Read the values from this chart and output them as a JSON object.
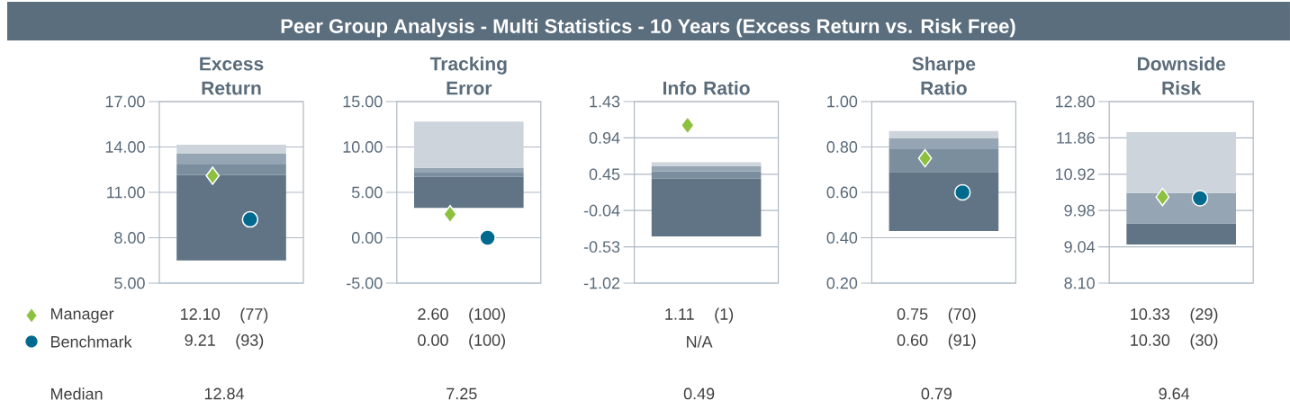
{
  "chart_data": [
    {
      "type": "other",
      "title": "Peer Group Analysis - Multi Statistics - 10 Years (Excess Return vs. Risk Free)",
      "annotations": [
        "Median"
      ]
    },
    {
      "type": "bar",
      "title": "Excess Return",
      "categories": [
        null
      ],
      "ylim": [
        5,
        17
      ],
      "yticks": [
        {
          "value": 5,
          "label": "5.00"
        },
        {
          "value": 8,
          "label": "8.00"
        },
        {
          "value": 11,
          "label": "11.00"
        },
        {
          "value": 14,
          "label": "14.00"
        },
        {
          "value": 17,
          "label": "17.00"
        }
      ],
      "grid": "y",
      "legend": "bottom left",
      "series": [
        {
          "color": "#607485",
          "base": [
            6.5
          ],
          "values": [
            5.65
          ]
        },
        {
          "color": "#7a8e9e",
          "base": [
            12.15
          ],
          "values": [
            0.69
          ]
        },
        {
          "color": "#95a5b3",
          "base": [
            12.84
          ],
          "values": [
            0.71
          ]
        },
        {
          "color": "#cdd4dc",
          "base": [
            13.55
          ],
          "values": [
            0.6
          ]
        },
        {
          "type": "scatter",
          "name": "Manager",
          "color": "#8cc03e",
          "marker": "diamond",
          "values": [
            12.1
          ]
        },
        {
          "type": "scatter",
          "name": "Benchmark",
          "color": "#006a8e",
          "marker": "circle",
          "values": [
            9.21
          ]
        }
      ],
      "annotations": [
        "12.10 (77)",
        "9.21 (93)",
        "12.84"
      ]
    },
    {
      "type": "bar",
      "title": "Tracking Error",
      "categories": [
        null
      ],
      "ylim": [
        -5,
        15
      ],
      "yticks": [
        {
          "value": -5,
          "label": "-5.00"
        },
        {
          "value": 0,
          "label": "0.00"
        },
        {
          "value": 5,
          "label": "5.00"
        },
        {
          "value": 10,
          "label": "10.00"
        },
        {
          "value": 15,
          "label": "15.00"
        }
      ],
      "grid": "y",
      "series": [
        {
          "color": "#607485",
          "base": [
            3.3
          ],
          "values": [
            3.4
          ]
        },
        {
          "color": "#7a8e9e",
          "base": [
            6.7
          ],
          "values": [
            0.55
          ]
        },
        {
          "color": "#95a5b3",
          "base": [
            7.25
          ],
          "values": [
            0.45
          ]
        },
        {
          "color": "#cdd4dc",
          "base": [
            7.7
          ],
          "values": [
            5.1
          ]
        },
        {
          "type": "scatter",
          "color": "#8cc03e",
          "marker": "diamond",
          "values": [
            2.6
          ]
        },
        {
          "type": "scatter",
          "color": "#006a8e",
          "marker": "circle",
          "values": [
            0.0
          ]
        }
      ],
      "annotations": [
        "2.60 (100)",
        "0.00 (100)",
        "7.25"
      ]
    },
    {
      "type": "bar",
      "title": "Info Ratio",
      "categories": [
        null
      ],
      "ylim": [
        -1.02,
        1.43
      ],
      "yticks": [
        {
          "value": -1.02,
          "label": "-1.02"
        },
        {
          "value": -0.53,
          "label": "-0.53"
        },
        {
          "value": -0.04,
          "label": "-0.04"
        },
        {
          "value": 0.45,
          "label": "0.45"
        },
        {
          "value": 0.94,
          "label": "0.94"
        },
        {
          "value": 1.43,
          "label": "1.43"
        }
      ],
      "grid": "y",
      "series": [
        {
          "color": "#607485",
          "base": [
            -0.39
          ],
          "values": [
            0.78
          ]
        },
        {
          "color": "#7a8e9e",
          "base": [
            0.39
          ],
          "values": [
            0.1
          ]
        },
        {
          "color": "#95a5b3",
          "base": [
            0.49
          ],
          "values": [
            0.07
          ]
        },
        {
          "color": "#cdd4dc",
          "base": [
            0.56
          ],
          "values": [
            0.05
          ]
        },
        {
          "type": "scatter",
          "color": "#8cc03e",
          "marker": "diamond",
          "values": [
            1.11
          ]
        }
      ],
      "annotations": [
        "1.11 (1)",
        "N/A",
        "0.49"
      ]
    },
    {
      "type": "bar",
      "title": "Sharpe Ratio",
      "categories": [
        null
      ],
      "ylim": [
        0.2,
        1.0
      ],
      "yticks": [
        {
          "value": 0.2,
          "label": "0.20"
        },
        {
          "value": 0.4,
          "label": "0.40"
        },
        {
          "value": 0.6,
          "label": "0.60"
        },
        {
          "value": 0.8,
          "label": "0.80"
        },
        {
          "value": 1.0,
          "label": "1.00"
        }
      ],
      "grid": "y",
      "series": [
        {
          "color": "#607485",
          "base": [
            0.43
          ],
          "values": [
            0.26
          ]
        },
        {
          "color": "#7a8e9e",
          "base": [
            0.69
          ],
          "values": [
            0.1
          ]
        },
        {
          "color": "#95a5b3",
          "base": [
            0.79
          ],
          "values": [
            0.05
          ]
        },
        {
          "color": "#cdd4dc",
          "base": [
            0.84
          ],
          "values": [
            0.03
          ]
        },
        {
          "type": "scatter",
          "color": "#8cc03e",
          "marker": "diamond",
          "values": [
            0.75
          ]
        },
        {
          "type": "scatter",
          "color": "#006a8e",
          "marker": "circle",
          "values": [
            0.6
          ]
        }
      ],
      "annotations": [
        "0.75 (70)",
        "0.60 (91)",
        "0.79"
      ]
    },
    {
      "type": "bar",
      "title": "Downside Risk",
      "categories": [
        null
      ],
      "ylim": [
        8.1,
        12.8
      ],
      "yticks": [
        {
          "value": 8.1,
          "label": "8.10"
        },
        {
          "value": 9.04,
          "label": "9.04"
        },
        {
          "value": 9.98,
          "label": "9.98"
        },
        {
          "value": 10.92,
          "label": "10.92"
        },
        {
          "value": 11.86,
          "label": "11.86"
        },
        {
          "value": 12.8,
          "label": "12.80"
        }
      ],
      "grid": "y",
      "series": [
        {
          "color": "#607485",
          "base": [
            9.1
          ],
          "values": [
            0.54
          ]
        },
        {
          "color": "#95a5b3",
          "base": [
            9.64
          ],
          "values": [
            0.79
          ]
        },
        {
          "color": "#cdd4dc",
          "base": [
            10.43
          ],
          "values": [
            1.58
          ]
        },
        {
          "type": "scatter",
          "color": "#8cc03e",
          "marker": "diamond",
          "values": [
            10.33
          ]
        },
        {
          "type": "scatter",
          "color": "#006a8e",
          "marker": "circle",
          "values": [
            10.3
          ]
        }
      ],
      "annotations": [
        "10.33 (29)",
        "10.30 (30)",
        "9.64"
      ]
    }
  ]
}
